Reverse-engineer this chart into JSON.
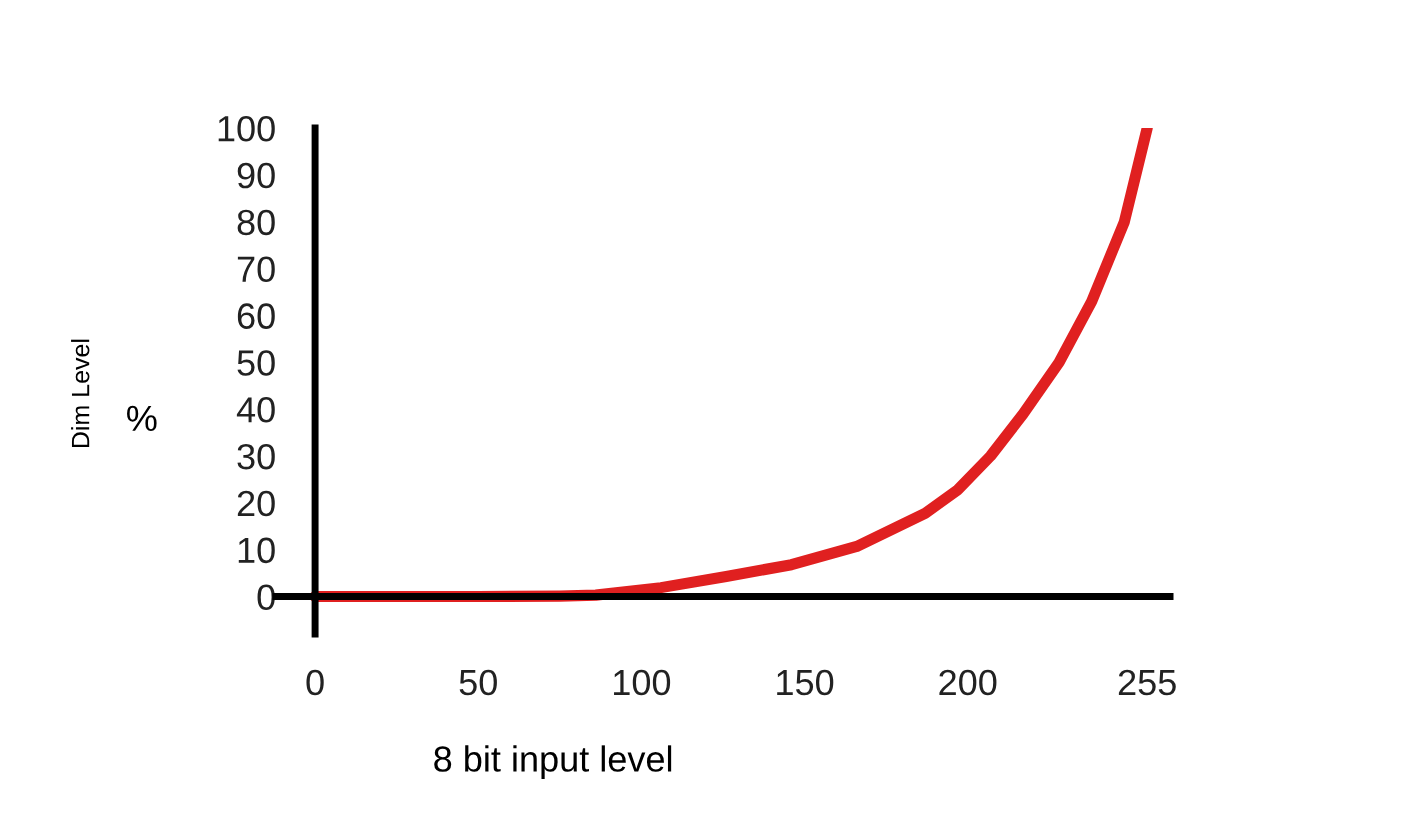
{
  "chart_data": {
    "type": "line",
    "xlabel": "8 bit input level",
    "ylabel": "%",
    "annotations": [
      "Dim Level"
    ],
    "x": [
      0,
      50,
      75,
      86,
      106,
      126,
      146,
      166,
      187,
      197,
      207,
      217,
      228,
      238,
      248,
      255
    ],
    "series": [
      {
        "color": "#e02020",
        "values": [
          0,
          0,
          0.1,
          0.3,
          1.9,
          4.3,
          6.8,
          10.7,
          17.8,
          22.8,
          30,
          39,
          50,
          63,
          80,
          100
        ]
      }
    ],
    "xlim": [
      -12,
      262
    ],
    "ylim": [
      -8,
      100
    ],
    "xticks": [
      0,
      50,
      100,
      150,
      200,
      255
    ],
    "yticks": [
      0,
      10,
      20,
      30,
      40,
      50,
      60,
      70,
      80,
      90,
      100
    ],
    "grid": false,
    "legend": false,
    "marker": "none",
    "line_style": "solid"
  }
}
